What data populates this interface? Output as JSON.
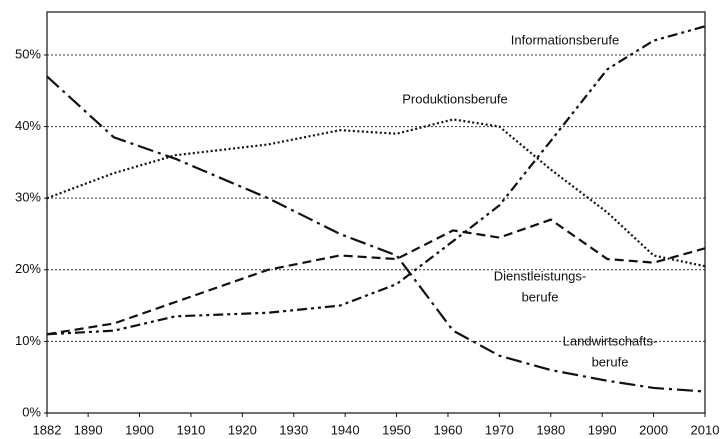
{
  "chart_data": {
    "type": "line",
    "x": [
      1882,
      1895,
      1907,
      1925,
      1939,
      1950,
      1961,
      1970,
      1980,
      1991,
      2000,
      2010
    ],
    "series": [
      {
        "name_lines": [
          "Landwirtschafts-",
          "berufe"
        ],
        "color": "#111111",
        "dash": "dash-dot",
        "values": [
          47,
          38.5,
          35.5,
          30,
          25,
          22,
          11.5,
          8,
          6,
          4.5,
          3.5,
          3
        ]
      },
      {
        "name_lines": [
          "Produktionsberufe"
        ],
        "color": "#111111",
        "dash": "dotted",
        "values": [
          30,
          33.5,
          36,
          37.5,
          39.5,
          39,
          41,
          40,
          34,
          28,
          22,
          20.5
        ]
      },
      {
        "name_lines": [
          "Dienstleistungs-",
          "berufe"
        ],
        "color": "#111111",
        "dash": "dashed",
        "values": [
          11,
          12.5,
          15.5,
          20,
          22,
          21.5,
          25.5,
          24.5,
          27,
          21.5,
          21,
          23
        ]
      },
      {
        "name_lines": [
          "Informationsberufe"
        ],
        "color": "#111111",
        "dash": "dash-dot-dot",
        "values": [
          11,
          11.5,
          13.5,
          14,
          15,
          18,
          24,
          29,
          38,
          48,
          52,
          54
        ]
      }
    ],
    "xlim": [
      1882,
      2010
    ],
    "xticks": [
      1882,
      1890,
      1900,
      1910,
      1920,
      1930,
      1940,
      1950,
      1960,
      1970,
      1980,
      1990,
      2000,
      2010
    ],
    "ylim": [
      0,
      56
    ],
    "yticks": [
      {
        "value": 0,
        "label": "0%"
      },
      {
        "value": 10,
        "label": "10%"
      },
      {
        "value": 20,
        "label": "20%"
      },
      {
        "value": 30,
        "label": "30%"
      },
      {
        "value": 40,
        "label": "40%"
      },
      {
        "value": 50,
        "label": "50%"
      }
    ],
    "grid": true
  }
}
